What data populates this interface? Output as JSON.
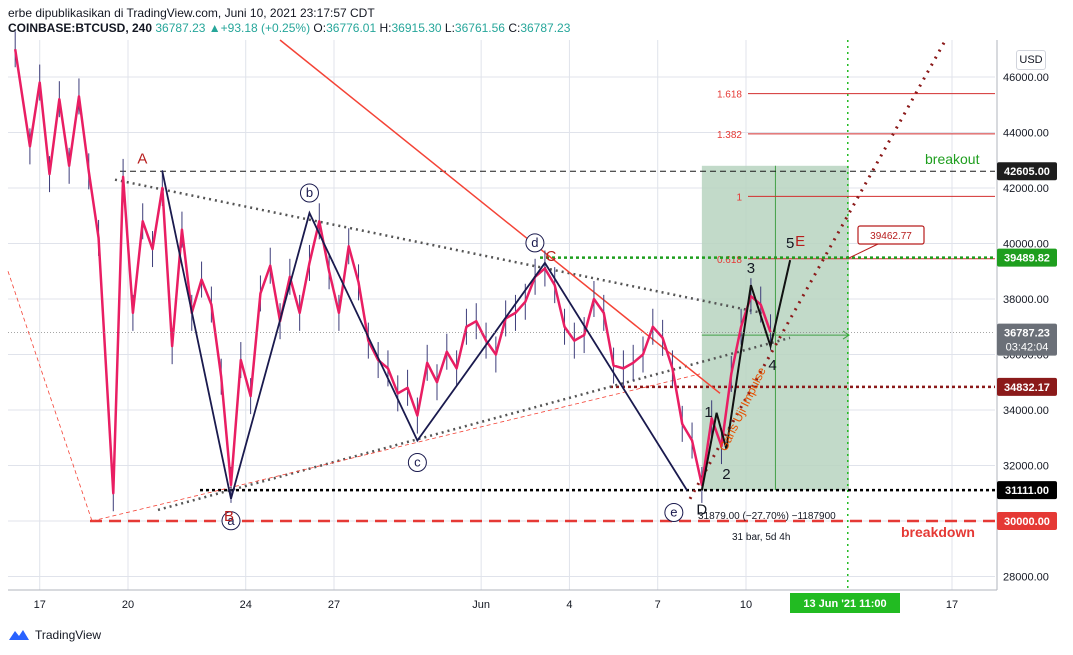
{
  "header": {
    "line1": "erbe dipublikasikan di TradingView.com, Juni 10, 2021 23:17:57 CDT",
    "symbol": "COINBASE:BTCUSD, 240",
    "last": "36787.23",
    "change": "+93.18 (+0.25%)",
    "open_label": "O:",
    "open": "36776.01",
    "high_label": "H:",
    "high": "36915.30",
    "low_label": "L:",
    "low": "36761.56",
    "close_label": "C:",
    "close": "36787.23"
  },
  "currency": "USD",
  "footer": {
    "brand": "TradingView"
  },
  "colors": {
    "grid": "#e0e3eb",
    "price_line": "#e91e63",
    "wave": "#1a1a4e",
    "trend": "#f44336",
    "box": "#b7d3c0",
    "breakout": "#1e9e1e",
    "breakdown": "#e53935",
    "dark_red": "#8b1a1a"
  },
  "chart_data": {
    "type": "line",
    "title": "",
    "xlabel": "",
    "ylabel": "",
    "ylim": [
      26500,
      47600
    ],
    "y_ticks": [
      "28000.00",
      "30000.00",
      "32000.00",
      "34000.00",
      "36000.00",
      "38000.00",
      "40000.00",
      "42000.00",
      "44000.00",
      "46000.00"
    ],
    "y_tick_values": [
      28000,
      30000,
      32000,
      34000,
      36000,
      38000,
      40000,
      42000,
      44000,
      46000
    ],
    "x_ticks": [
      {
        "label": "17",
        "date": "2021-05-17"
      },
      {
        "label": "20",
        "date": "2021-05-20"
      },
      {
        "label": "24",
        "date": "2021-05-24"
      },
      {
        "label": "27",
        "date": "2021-05-27"
      },
      {
        "label": "Jun",
        "date": "2021-06-01"
      },
      {
        "label": "4",
        "date": "2021-06-04"
      },
      {
        "label": "7",
        "date": "2021-06-07"
      },
      {
        "label": "10",
        "date": "2021-06-10"
      },
      {
        "label": "17",
        "date": "2021-06-17"
      }
    ],
    "price_series": {
      "name": "BTCUSD",
      "points": [
        [
          "2021-05-16 04:00",
          47000
        ],
        [
          "2021-05-16 16:00",
          43500
        ],
        [
          "2021-05-17 00:00",
          45800
        ],
        [
          "2021-05-17 08:00",
          42500
        ],
        [
          "2021-05-17 16:00",
          45200
        ],
        [
          "2021-05-18 00:00",
          42800
        ],
        [
          "2021-05-18 08:00",
          45300
        ],
        [
          "2021-05-18 16:00",
          42600
        ],
        [
          "2021-05-19 00:00",
          40200
        ],
        [
          "2021-05-19 12:00",
          31000
        ],
        [
          "2021-05-19 20:00",
          42400
        ],
        [
          "2021-05-20 04:00",
          37500
        ],
        [
          "2021-05-20 12:00",
          40800
        ],
        [
          "2021-05-20 20:00",
          39800
        ],
        [
          "2021-05-21 04:00",
          42000
        ],
        [
          "2021-05-21 12:00",
          36300
        ],
        [
          "2021-05-21 20:00",
          40500
        ],
        [
          "2021-05-22 04:00",
          37500
        ],
        [
          "2021-05-22 12:00",
          38700
        ],
        [
          "2021-05-22 20:00",
          37800
        ],
        [
          "2021-05-23 04:00",
          35200
        ],
        [
          "2021-05-23 12:00",
          31300
        ],
        [
          "2021-05-23 20:00",
          35800
        ],
        [
          "2021-05-24 04:00",
          34500
        ],
        [
          "2021-05-24 12:00",
          38200
        ],
        [
          "2021-05-24 20:00",
          39200
        ],
        [
          "2021-05-25 04:00",
          37200
        ],
        [
          "2021-05-25 12:00",
          38800
        ],
        [
          "2021-05-25 20:00",
          37500
        ],
        [
          "2021-05-26 04:00",
          39300
        ],
        [
          "2021-05-26 12:00",
          40800
        ],
        [
          "2021-05-26 20:00",
          39000
        ],
        [
          "2021-05-27 04:00",
          37500
        ],
        [
          "2021-05-27 12:00",
          39900
        ],
        [
          "2021-05-27 20:00",
          38600
        ],
        [
          "2021-05-28 04:00",
          36500
        ],
        [
          "2021-05-28 12:00",
          35800
        ],
        [
          "2021-05-28 20:00",
          35500
        ],
        [
          "2021-05-29 04:00",
          34600
        ],
        [
          "2021-05-29 12:00",
          34800
        ],
        [
          "2021-05-29 20:00",
          33800
        ],
        [
          "2021-05-30 04:00",
          35700
        ],
        [
          "2021-05-30 12:00",
          35000
        ],
        [
          "2021-05-30 20:00",
          36100
        ],
        [
          "2021-05-31 04:00",
          35500
        ],
        [
          "2021-05-31 12:00",
          37000
        ],
        [
          "2021-05-31 20:00",
          37200
        ],
        [
          "2021-06-01 04:00",
          36500
        ],
        [
          "2021-06-01 12:00",
          36000
        ],
        [
          "2021-06-01 20:00",
          37300
        ],
        [
          "2021-06-02 04:00",
          37500
        ],
        [
          "2021-06-02 12:00",
          37900
        ],
        [
          "2021-06-02 20:00",
          38800
        ],
        [
          "2021-06-03 04:00",
          39100
        ],
        [
          "2021-06-03 12:00",
          38500
        ],
        [
          "2021-06-03 20:00",
          37000
        ],
        [
          "2021-06-04 04:00",
          36500
        ],
        [
          "2021-06-04 12:00",
          36700
        ],
        [
          "2021-06-04 20:00",
          38000
        ],
        [
          "2021-06-05 04:00",
          37500
        ],
        [
          "2021-06-05 12:00",
          35600
        ],
        [
          "2021-06-05 20:00",
          35500
        ],
        [
          "2021-06-06 04:00",
          35700
        ],
        [
          "2021-06-06 12:00",
          36000
        ],
        [
          "2021-06-06 20:00",
          37000
        ],
        [
          "2021-06-07 04:00",
          36600
        ],
        [
          "2021-06-07 12:00",
          35500
        ],
        [
          "2021-06-07 20:00",
          33500
        ],
        [
          "2021-06-08 04:00",
          32900
        ],
        [
          "2021-06-08 12:00",
          31300
        ],
        [
          "2021-06-08 20:00",
          33700
        ],
        [
          "2021-06-09 04:00",
          32700
        ],
        [
          "2021-06-09 12:00",
          35300
        ],
        [
          "2021-06-09 20:00",
          37000
        ],
        [
          "2021-06-10 04:00",
          38100
        ],
        [
          "2021-06-10 12:00",
          37800
        ],
        [
          "2021-06-10 20:00",
          36800
        ]
      ]
    },
    "wave_points": [
      {
        "label": "A",
        "date": "2021-05-21 04:00",
        "price": 42600,
        "label_color": "#b71c1c"
      },
      {
        "label": "a",
        "date": "2021-05-23 12:00",
        "price": 30800,
        "circled": true
      },
      {
        "label": "B",
        "date": "2021-05-23 12:00",
        "price": 30800,
        "label_color": "#b71c1c"
      },
      {
        "label": "b",
        "date": "2021-05-26 04:00",
        "price": 41100,
        "circled": true
      },
      {
        "label": "c",
        "date": "2021-05-29 20:00",
        "price": 32900,
        "circled": true
      },
      {
        "label": "d",
        "date": "2021-06-03 04:00",
        "price": 39300,
        "circled": true
      },
      {
        "label": "C",
        "date": "2021-06-03 04:00",
        "price": 39300,
        "label_color": "#b71c1c"
      },
      {
        "label": "e",
        "date": "2021-06-08 12:00",
        "price": 31100,
        "circled": true
      },
      {
        "label": "D",
        "date": "2021-06-08 12:00",
        "price": 31100,
        "label_color": "#131722"
      },
      {
        "label": "1",
        "date": "2021-06-09 00:00",
        "price": 33900
      },
      {
        "label": "2",
        "date": "2021-06-09 08:00",
        "price": 32600
      },
      {
        "label": "3",
        "date": "2021-06-10 04:00",
        "price": 38500
      },
      {
        "label": "4",
        "date": "2021-06-10 20:00",
        "price": 36300
      },
      {
        "label": "5",
        "date": "2021-06-11 12:00",
        "price": 39400
      },
      {
        "label": "E",
        "date": "2021-06-11 12:00",
        "price": 39400,
        "label_color": "#b71c1c"
      }
    ],
    "fib_levels": [
      {
        "label": "1.618",
        "price": 45400
      },
      {
        "label": "1.382",
        "price": 43950
      },
      {
        "label": "1",
        "price": 41700
      },
      {
        "label": "0.618",
        "price": 39450
      }
    ],
    "horizontal_levels": [
      {
        "price": 42605.0,
        "label": "42605.00",
        "color": "#1a1a1a",
        "style": "dashed",
        "bg": "#1e1e1e"
      },
      {
        "price": 39489.82,
        "label": "39489.82",
        "color": "#1e9e1e",
        "style": "dotted",
        "bg": "#1e9e1e"
      },
      {
        "price": 34832.17,
        "label": "34832.17",
        "color": "#8b1a1a",
        "style": "dotted",
        "bg": "#8b1a1a"
      },
      {
        "price": 31111.0,
        "label": "31111.00",
        "color": "#000000",
        "style": "dotted",
        "bg": "#000000"
      },
      {
        "price": 30000.0,
        "label": "30000.00",
        "color": "#e53935",
        "style": "dashed",
        "bg": "#e53935"
      }
    ],
    "last_price_label": "36787.23",
    "countdown_label": "03:42:04",
    "callout": "39462.77",
    "annotations": {
      "breakout": "breakout",
      "breakdown": "breakdown",
      "uji_impulse": "Garis Uji Impulse",
      "measure": "31879.00 (−27.70%) −1187900",
      "measure_bars": "31 bar, 5d 4h",
      "x_highlight": "13 Jun '21  11:00"
    }
  }
}
